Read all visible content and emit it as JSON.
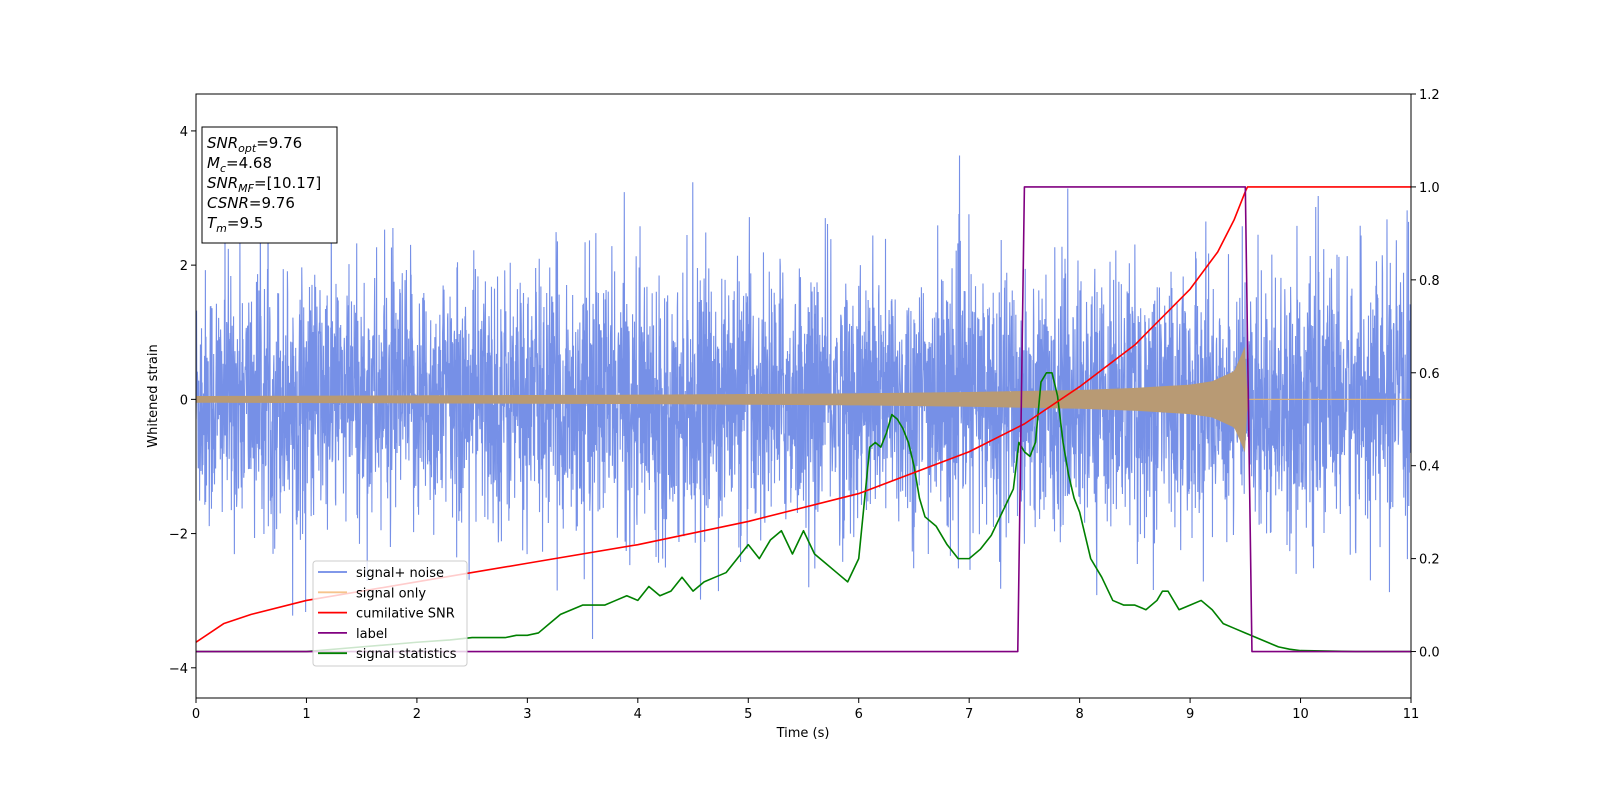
{
  "chart_data": {
    "type": "line",
    "xlabel": "Time (s)",
    "ylabel": "Whitened strain",
    "xlim": [
      0,
      11
    ],
    "ylim_left": [
      -4.45,
      4.55
    ],
    "ylim_right": [
      -0.1,
      1.2
    ],
    "x_ticks": [
      "0",
      "1",
      "2",
      "3",
      "4",
      "5",
      "6",
      "7",
      "8",
      "9",
      "10",
      "11"
    ],
    "y_ticks_left": [
      "4",
      "2",
      "0",
      "−2",
      "−4"
    ],
    "y_ticks_right": [
      "1.2",
      "1.0",
      "0.8",
      "0.6",
      "0.4",
      "0.2",
      "0.0"
    ],
    "legend_position": "lower-left",
    "grid": false,
    "annotation": {
      "lines": [
        {
          "sym": "SNR",
          "sub": "opt",
          "value": "=9.76"
        },
        {
          "sym": "M",
          "sub": "c",
          "value": "=4.68"
        },
        {
          "sym": "SNR",
          "sub": "MF",
          "value": "=[10.17]"
        },
        {
          "sym": "CSNR",
          "sub": "",
          "value": "=9.76"
        },
        {
          "sym": "T",
          "sub": "m",
          "value": "=9.5"
        }
      ]
    },
    "series": [
      {
        "name": "signal+ noise",
        "color": "#6f8ae6",
        "axis": "left",
        "description_values": {
          "noise_std": 1.0,
          "max": 4.17,
          "min": -4.05
        }
      },
      {
        "name": "signal only",
        "color": "#f6c48c",
        "axis": "left",
        "envelope": {
          "x": [
            0,
            2,
            4,
            6,
            7,
            8,
            8.5,
            9,
            9.2,
            9.4,
            9.5,
            9.52,
            9.55,
            11
          ],
          "amplitude": [
            0.05,
            0.06,
            0.07,
            0.09,
            0.11,
            0.14,
            0.17,
            0.22,
            0.27,
            0.42,
            0.8,
            0.0,
            0.0,
            0.0
          ]
        }
      },
      {
        "name": "cumilative SNR",
        "color": "#ff0000",
        "axis": "right",
        "x": [
          0,
          0.25,
          0.5,
          1,
          2,
          3,
          4,
          5,
          6,
          7,
          7.5,
          8,
          8.5,
          9,
          9.25,
          9.4,
          9.5,
          9.52,
          11
        ],
        "y": [
          0.02,
          0.06,
          0.08,
          0.11,
          0.15,
          0.19,
          0.23,
          0.28,
          0.34,
          0.43,
          0.49,
          0.57,
          0.66,
          0.78,
          0.86,
          0.93,
          0.99,
          1.0,
          1.0
        ]
      },
      {
        "name": "label",
        "color": "#800080",
        "axis": "right",
        "x": [
          0,
          7.44,
          7.5,
          9.5,
          9.56,
          11
        ],
        "y": [
          0,
          0,
          1,
          1,
          0,
          0
        ]
      },
      {
        "name": "signal statistics",
        "color": "#008000",
        "axis": "right",
        "x": [
          0,
          0.5,
          1,
          1.5,
          2,
          2.3,
          2.5,
          2.7,
          2.8,
          2.9,
          3.0,
          3.1,
          3.2,
          3.3,
          3.4,
          3.5,
          3.6,
          3.7,
          3.8,
          3.9,
          4.0,
          4.1,
          4.2,
          4.3,
          4.4,
          4.5,
          4.6,
          4.7,
          4.8,
          4.9,
          5.0,
          5.1,
          5.2,
          5.3,
          5.4,
          5.5,
          5.6,
          5.7,
          5.8,
          5.9,
          6.0,
          6.1,
          6.15,
          6.2,
          6.25,
          6.3,
          6.35,
          6.4,
          6.45,
          6.5,
          6.55,
          6.6,
          6.7,
          6.8,
          6.9,
          7.0,
          7.1,
          7.2,
          7.3,
          7.4,
          7.45,
          7.5,
          7.55,
          7.6,
          7.65,
          7.7,
          7.75,
          7.8,
          7.85,
          7.9,
          7.95,
          8.0,
          8.05,
          8.1,
          8.2,
          8.3,
          8.4,
          8.5,
          8.6,
          8.7,
          8.75,
          8.8,
          8.9,
          9.0,
          9.1,
          9.2,
          9.3,
          9.4,
          9.5,
          9.6,
          9.7,
          9.8,
          9.9,
          10.0,
          10.5,
          11
        ],
        "y": [
          0.0,
          0.0,
          0.0,
          0.01,
          0.02,
          0.025,
          0.03,
          0.03,
          0.03,
          0.035,
          0.035,
          0.04,
          0.06,
          0.08,
          0.09,
          0.1,
          0.1,
          0.1,
          0.11,
          0.12,
          0.11,
          0.14,
          0.12,
          0.13,
          0.16,
          0.13,
          0.15,
          0.16,
          0.17,
          0.2,
          0.23,
          0.2,
          0.24,
          0.26,
          0.21,
          0.26,
          0.21,
          0.19,
          0.17,
          0.15,
          0.2,
          0.44,
          0.45,
          0.44,
          0.47,
          0.51,
          0.5,
          0.48,
          0.45,
          0.4,
          0.33,
          0.29,
          0.27,
          0.23,
          0.2,
          0.2,
          0.22,
          0.25,
          0.3,
          0.35,
          0.45,
          0.43,
          0.42,
          0.45,
          0.58,
          0.6,
          0.6,
          0.55,
          0.45,
          0.38,
          0.33,
          0.3,
          0.25,
          0.2,
          0.16,
          0.11,
          0.1,
          0.1,
          0.09,
          0.11,
          0.13,
          0.13,
          0.09,
          0.1,
          0.11,
          0.09,
          0.06,
          0.05,
          0.04,
          0.03,
          0.02,
          0.01,
          0.005,
          0.002,
          0.0,
          0.0
        ]
      }
    ]
  }
}
